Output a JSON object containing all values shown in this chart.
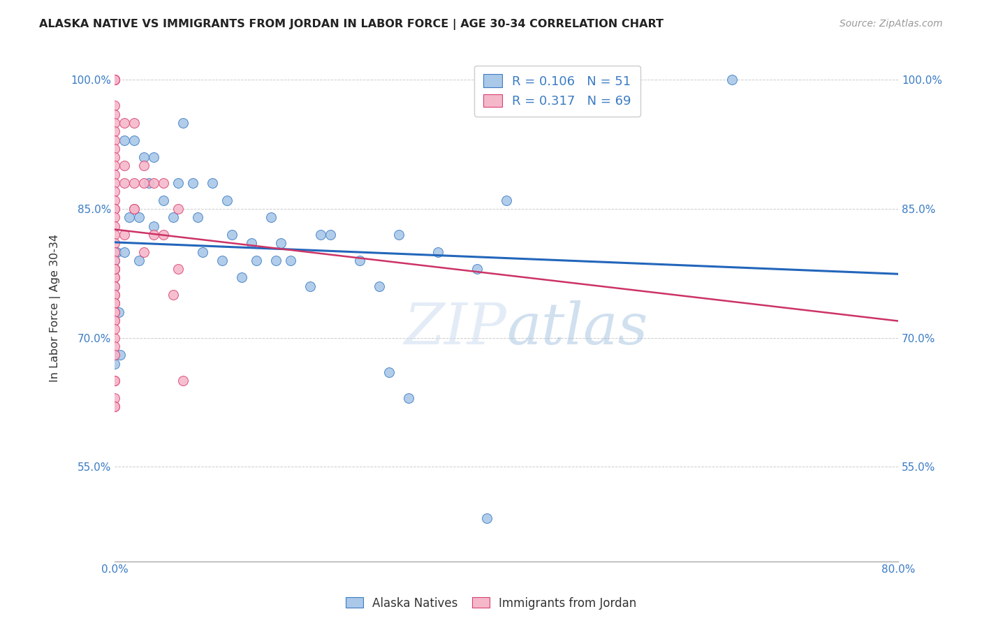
{
  "title": "ALASKA NATIVE VS IMMIGRANTS FROM JORDAN IN LABOR FORCE | AGE 30-34 CORRELATION CHART",
  "source": "Source: ZipAtlas.com",
  "ylabel": "In Labor Force | Age 30-34",
  "xmin": 0.0,
  "xmax": 0.8,
  "ymin": 0.44,
  "ymax": 1.03,
  "yticks": [
    0.55,
    0.7,
    0.85,
    1.0
  ],
  "ytick_labels": [
    "55.0%",
    "70.0%",
    "85.0%",
    "100.0%"
  ],
  "xtick_left_label": "0.0%",
  "xtick_right_label": "80.0%",
  "blue_R": 0.106,
  "blue_N": 51,
  "pink_R": 0.317,
  "pink_N": 69,
  "blue_color": "#aac8e8",
  "pink_color": "#f5b8ca",
  "blue_edge_color": "#3b7cc4",
  "pink_edge_color": "#d94070",
  "blue_line_color": "#2266bb",
  "pink_line_color": "#cc3366",
  "axis_color": "#3b7cc4",
  "watermark_color": "#ddeeff",
  "blue_scatter_x": [
    0.0,
    0.0,
    0.0,
    0.0,
    0.0,
    0.0,
    0.0,
    0.002,
    0.004,
    0.006,
    0.01,
    0.01,
    0.015,
    0.02,
    0.025,
    0.025,
    0.03,
    0.035,
    0.04,
    0.04,
    0.05,
    0.06,
    0.065,
    0.07,
    0.08,
    0.085,
    0.09,
    0.1,
    0.11,
    0.115,
    0.12,
    0.13,
    0.14,
    0.145,
    0.16,
    0.165,
    0.17,
    0.18,
    0.2,
    0.21,
    0.22,
    0.25,
    0.27,
    0.28,
    0.29,
    0.3,
    0.33,
    0.37,
    0.38,
    0.4,
    0.63
  ],
  "blue_scatter_y": [
    0.8,
    0.68,
    0.67,
    0.73,
    0.76,
    0.79,
    0.78,
    0.8,
    0.73,
    0.68,
    0.93,
    0.8,
    0.84,
    0.93,
    0.84,
    0.79,
    0.91,
    0.88,
    0.91,
    0.83,
    0.86,
    0.84,
    0.88,
    0.95,
    0.88,
    0.84,
    0.8,
    0.88,
    0.79,
    0.86,
    0.82,
    0.77,
    0.81,
    0.79,
    0.84,
    0.79,
    0.81,
    0.79,
    0.76,
    0.82,
    0.82,
    0.79,
    0.76,
    0.66,
    0.82,
    0.63,
    0.8,
    0.78,
    0.49,
    0.86,
    1.0
  ],
  "pink_scatter_x": [
    0.0,
    0.0,
    0.0,
    0.0,
    0.0,
    0.0,
    0.0,
    0.0,
    0.0,
    0.0,
    0.0,
    0.0,
    0.0,
    0.0,
    0.0,
    0.0,
    0.0,
    0.0,
    0.0,
    0.0,
    0.0,
    0.0,
    0.0,
    0.0,
    0.0,
    0.0,
    0.0,
    0.0,
    0.0,
    0.0,
    0.0,
    0.0,
    0.0,
    0.0,
    0.0,
    0.0,
    0.0,
    0.0,
    0.0,
    0.0,
    0.0,
    0.0,
    0.0,
    0.01,
    0.01,
    0.01,
    0.02,
    0.02,
    0.02,
    0.03,
    0.03,
    0.04,
    0.04,
    0.05,
    0.05,
    0.06,
    0.065,
    0.07,
    0.065,
    0.03,
    0.02,
    0.01,
    0.0,
    0.0,
    0.0,
    0.0,
    0.0,
    0.0,
    0.0
  ],
  "pink_scatter_y": [
    1.0,
    1.0,
    1.0,
    1.0,
    1.0,
    1.0,
    0.97,
    0.96,
    0.95,
    0.94,
    0.93,
    0.92,
    0.91,
    0.9,
    0.89,
    0.88,
    0.87,
    0.86,
    0.85,
    0.85,
    0.84,
    0.83,
    0.82,
    0.81,
    0.8,
    0.79,
    0.78,
    0.78,
    0.77,
    0.77,
    0.76,
    0.75,
    0.74,
    0.73,
    0.72,
    0.7,
    0.69,
    0.68,
    0.65,
    0.63,
    0.62,
    0.62,
    0.78,
    0.95,
    0.88,
    0.82,
    0.95,
    0.88,
    0.85,
    0.9,
    0.8,
    0.88,
    0.82,
    0.88,
    0.82,
    0.75,
    0.78,
    0.65,
    0.85,
    0.88,
    0.85,
    0.9,
    0.78,
    0.75,
    0.74,
    0.73,
    0.72,
    0.71,
    0.65
  ]
}
